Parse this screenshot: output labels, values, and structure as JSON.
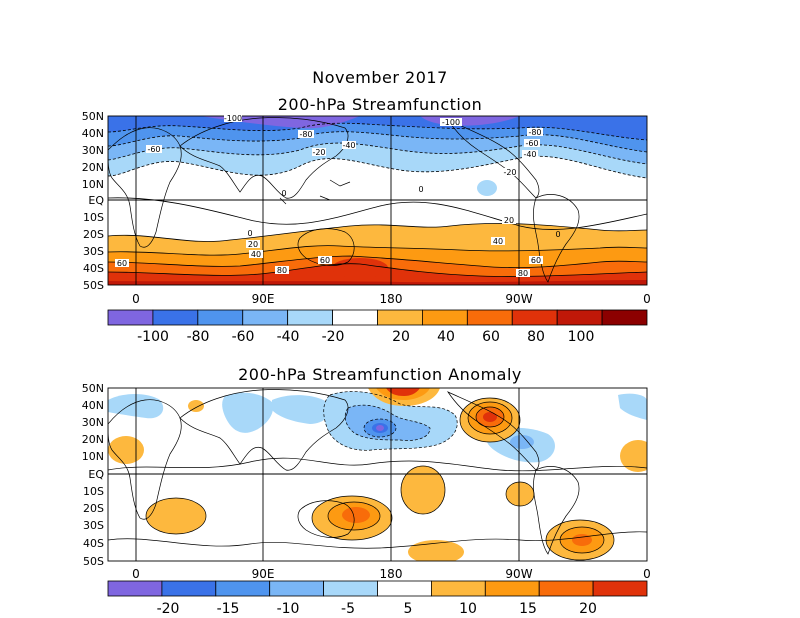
{
  "header": {
    "month_title": "November 2017"
  },
  "map1": {
    "title": "200-hPa Streamfunction",
    "lat_labels": [
      "50N",
      "40N",
      "30N",
      "20N",
      "10N",
      "EQ",
      "10S",
      "20S",
      "30S",
      "40S",
      "50S"
    ],
    "lon_labels": [
      "0",
      "90E",
      "180",
      "90W",
      "0"
    ],
    "colorbar": {
      "labels": [
        "-100",
        "-80",
        "-60",
        "-40",
        "-20",
        "20",
        "40",
        "60",
        "80",
        "100"
      ],
      "colors": [
        "#7f66e0",
        "#3a72e8",
        "#4f94ee",
        "#7ab6f6",
        "#a8d8f9",
        "#ffffff",
        "#fdb83e",
        "#fd9a12",
        "#f86c0a",
        "#e0320a",
        "#c01808",
        "#8c0000"
      ]
    },
    "contour_labels": [
      "-100",
      "-80",
      "-60",
      "-40",
      "-20",
      "0",
      "20",
      "40",
      "60",
      "80"
    ]
  },
  "map2": {
    "title": "200-hPa Streamfunction Anomaly",
    "lat_labels": [
      "50N",
      "40N",
      "30N",
      "20N",
      "10N",
      "EQ",
      "10S",
      "20S",
      "30S",
      "40S",
      "50S"
    ],
    "lon_labels": [
      "0",
      "90E",
      "180",
      "90W",
      "0"
    ],
    "colorbar": {
      "labels": [
        "-20",
        "-15",
        "-10",
        "-5",
        "5",
        "10",
        "15",
        "20"
      ],
      "colors": [
        "#7f66e0",
        "#3a72e8",
        "#4f94ee",
        "#7ab6f6",
        "#a8d8f9",
        "#ffffff",
        "#fdb83e",
        "#fd9a12",
        "#f86c0a",
        "#e0320a"
      ]
    }
  }
}
